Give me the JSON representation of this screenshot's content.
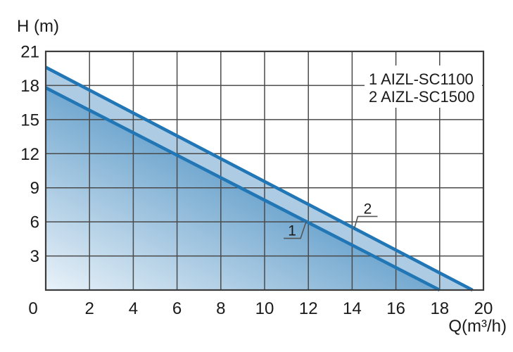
{
  "chart_data": {
    "type": "line",
    "title": "",
    "xlabel": "Q(m³/h)",
    "ylabel": "H (m)",
    "xlim": [
      0,
      20
    ],
    "ylim": [
      0,
      21
    ],
    "xticks": [
      0,
      2,
      4,
      6,
      8,
      10,
      12,
      14,
      16,
      18,
      20
    ],
    "yticks": [
      0,
      3,
      6,
      9,
      12,
      15,
      18,
      21
    ],
    "grid": true,
    "legend_position": "top-right",
    "series": [
      {
        "id": "1",
        "name": "AIZL-SC1100",
        "legend_label": "1 AIZL-SC1100",
        "points": [
          [
            0,
            17.8
          ],
          [
            18,
            0
          ]
        ]
      },
      {
        "id": "2",
        "name": "AIZL-SC1500",
        "legend_label": "2 AIZL-SC1500",
        "points": [
          [
            0,
            19.6
          ],
          [
            19.5,
            0
          ]
        ]
      }
    ],
    "annotations": [
      {
        "text": "1",
        "attach_series": 0,
        "attach_x": 11.9
      },
      {
        "text": "2",
        "attach_series": 1,
        "attach_x": 14.1
      }
    ],
    "colors": {
      "curve": "#2176b5",
      "grid": "#4a4a4a",
      "border": "#3c3c3c",
      "band_fill": "#adcce4",
      "area_fill_dark": "#74a9d0",
      "area_fill_light": "#e9f2f9",
      "text": "#1a1a1a",
      "callout_line": "#555555"
    }
  }
}
